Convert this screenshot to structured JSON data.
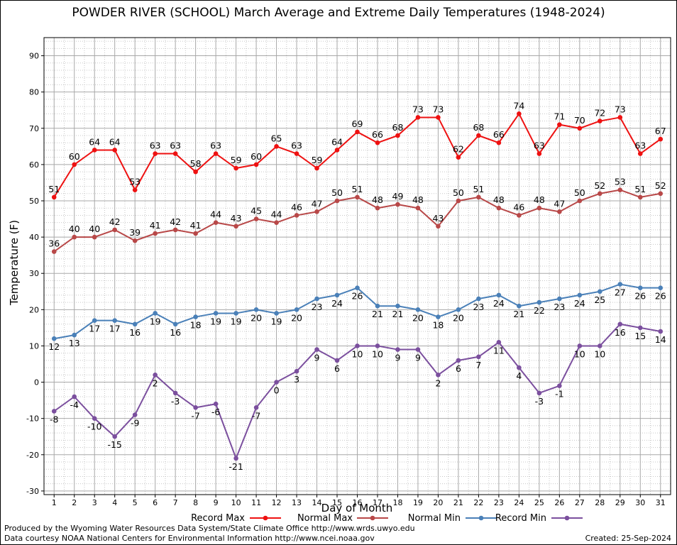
{
  "chart_data": {
    "type": "line",
    "title": "POWDER RIVER (SCHOOL) March Average and Extreme Daily Temperatures (1948-2024)",
    "xlabel": "Day of Month",
    "ylabel": "Temperature (F)",
    "x": [
      1,
      2,
      3,
      4,
      5,
      6,
      7,
      8,
      9,
      10,
      11,
      12,
      13,
      14,
      15,
      16,
      17,
      18,
      19,
      20,
      21,
      22,
      23,
      24,
      25,
      26,
      27,
      28,
      29,
      30,
      31
    ],
    "xlim": [
      0.5,
      31.5
    ],
    "ylim": [
      -31,
      95
    ],
    "yticks": [
      -30,
      -20,
      -10,
      0,
      10,
      20,
      30,
      40,
      50,
      60,
      70,
      80,
      90
    ],
    "grid": true,
    "legend_position": "bottom",
    "series": [
      {
        "name": "Record Max",
        "color": "#ee1111",
        "values": [
          51,
          60,
          64,
          64,
          53,
          63,
          63,
          58,
          63,
          59,
          60,
          65,
          63,
          59,
          64,
          69,
          66,
          68,
          73,
          73,
          62,
          68,
          66,
          74,
          63,
          71,
          70,
          72,
          73,
          63,
          67
        ]
      },
      {
        "name": "Normal Max",
        "color": "#b84848",
        "values": [
          36,
          40,
          40,
          42,
          39,
          41,
          42,
          41,
          44,
          43,
          45,
          44,
          46,
          47,
          50,
          51,
          48,
          49,
          48,
          43,
          50,
          51,
          48,
          46,
          48,
          47,
          50,
          52,
          53,
          51,
          52
        ]
      },
      {
        "name": "Normal Min",
        "color": "#4a80b8",
        "values": [
          12,
          13,
          17,
          17,
          16,
          19,
          16,
          18,
          19,
          19,
          20,
          19,
          20,
          23,
          24,
          26,
          21,
          21,
          20,
          18,
          20,
          23,
          24,
          21,
          22,
          23,
          24,
          25,
          27,
          26,
          26
        ]
      },
      {
        "name": "Record Min",
        "color": "#7b4f9e",
        "values": [
          -8,
          -4,
          -10,
          -15,
          -9,
          2,
          -3,
          -7,
          -6,
          -21,
          -7,
          0,
          3,
          9,
          6,
          10,
          10,
          9,
          9,
          2,
          6,
          7,
          11,
          4,
          -3,
          -1,
          10,
          10,
          16,
          15,
          14
        ]
      }
    ]
  },
  "footer": {
    "produced": "Produced by the Wyoming Water Resources Data System/State Climate Office http://www.wrds.uwyo.edu",
    "courtesy": "Data courtesy NOAA National Centers for Environmental Information http://www.ncei.noaa.gov",
    "created": "Created:  25-Sep-2024"
  }
}
